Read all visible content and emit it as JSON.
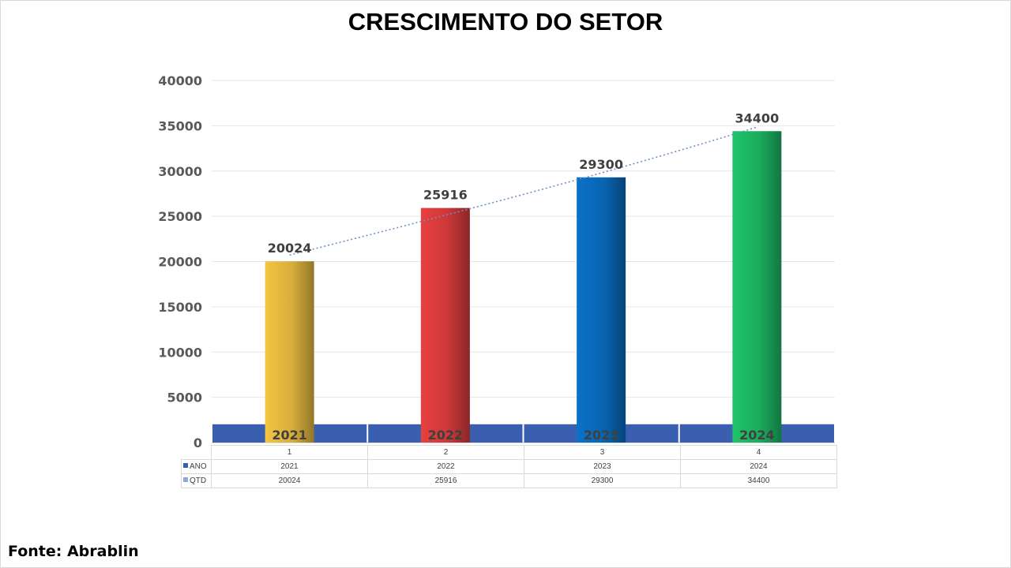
{
  "chart_data": {
    "type": "bar",
    "title": "CRESCIMENTO DO SETOR",
    "categories": [
      "1",
      "2",
      "3",
      "4"
    ],
    "series": [
      {
        "name": "ANO",
        "values": [
          2021,
          2022,
          2023,
          2024
        ],
        "color": "#3a5fb0"
      },
      {
        "name": "QTD",
        "values": [
          20024,
          25916,
          29300,
          34400
        ],
        "color": "#8da9db"
      }
    ],
    "bar_colors": [
      "#f5c542",
      "#e84040",
      "#0a72c9",
      "#1ec46a"
    ],
    "y_ticks": [
      "0",
      "5000",
      "10000",
      "15000",
      "20000",
      "25000",
      "30000",
      "35000",
      "40000"
    ],
    "ylim": [
      0,
      40000
    ],
    "trendline": "dotted",
    "data_table": true,
    "grid": true
  },
  "source": "Fonte: Abrablin"
}
